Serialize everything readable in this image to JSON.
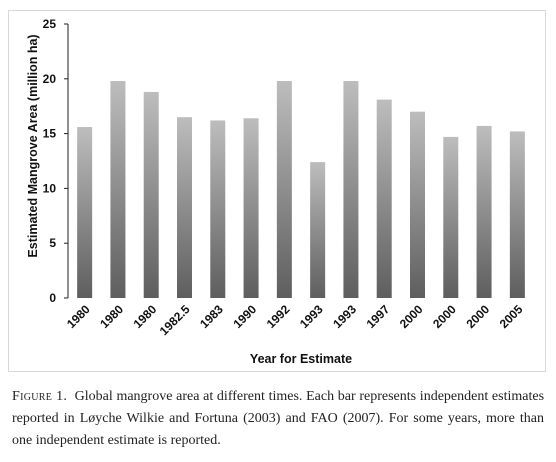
{
  "chart_data": {
    "type": "bar",
    "categories": [
      "1980",
      "1980",
      "1980",
      "1982.5",
      "1983",
      "1990",
      "1992",
      "1993",
      "1993",
      "1997",
      "2000",
      "2000",
      "2000",
      "2005"
    ],
    "values": [
      15.6,
      19.8,
      18.8,
      16.5,
      16.2,
      16.4,
      19.8,
      12.4,
      19.8,
      18.1,
      17.0,
      14.7,
      15.7,
      15.2
    ],
    "xlabel": "Year for Estimate",
    "ylabel": "Estimated Mangrove Area (million ha)",
    "ylim": [
      0,
      25
    ],
    "yticks": [
      "0",
      "5",
      "10",
      "15",
      "20",
      "25"
    ],
    "grid": false,
    "colors": {
      "bar_top": "#bdbdbd",
      "bar_bottom": "#5e5e5e"
    }
  },
  "caption": {
    "label": "Figure 1.",
    "text": "Global mangrove area at different times. Each bar represents independent estimates reported in Løyche Wilkie and Fortuna (2003) and FAO (2007).  For some years, more than one independent estimate is reported."
  }
}
